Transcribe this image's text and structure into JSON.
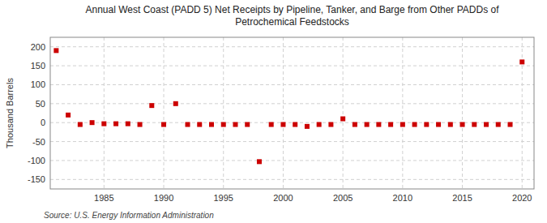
{
  "chart_data": {
    "type": "scatter",
    "title": "Annual West Coast (PADD 5) Net Receipts by Pipeline, Tanker, and Barge from Other PADDs of\nPetrochemical Feedstocks",
    "ylabel": "Thousand Barrels",
    "annotations": [
      "Source: U.S. Energy Information Administration"
    ],
    "x": [
      1981,
      1982,
      1983,
      1984,
      1985,
      1986,
      1987,
      1988,
      1989,
      1990,
      1991,
      1992,
      1993,
      1994,
      1995,
      1996,
      1997,
      1998,
      1999,
      2000,
      2001,
      2002,
      2003,
      2004,
      2005,
      2006,
      2007,
      2008,
      2009,
      2010,
      2011,
      2012,
      2013,
      2014,
      2015,
      2016,
      2017,
      2018,
      2019,
      2020
    ],
    "values": [
      190,
      20,
      -5,
      0,
      -3,
      -3,
      -3,
      -5,
      45,
      -5,
      50,
      -5,
      -5,
      -5,
      -5,
      -5,
      -5,
      -103,
      -5,
      -5,
      -5,
      -10,
      -5,
      -5,
      10,
      -5,
      -5,
      -5,
      -5,
      -5,
      -5,
      -5,
      -5,
      -5,
      -5,
      -5,
      -5,
      -5,
      -5,
      160
    ],
    "color": "#cc0000",
    "marker": "square",
    "grid": true,
    "xlim": [
      1980.5,
      2021
    ],
    "xticks": [
      1985,
      1990,
      1995,
      2000,
      2005,
      2010,
      2015,
      2020
    ],
    "ylim": [
      -175,
      225
    ],
    "yticks": [
      -150,
      -100,
      -50,
      0,
      50,
      100,
      150,
      200
    ]
  }
}
